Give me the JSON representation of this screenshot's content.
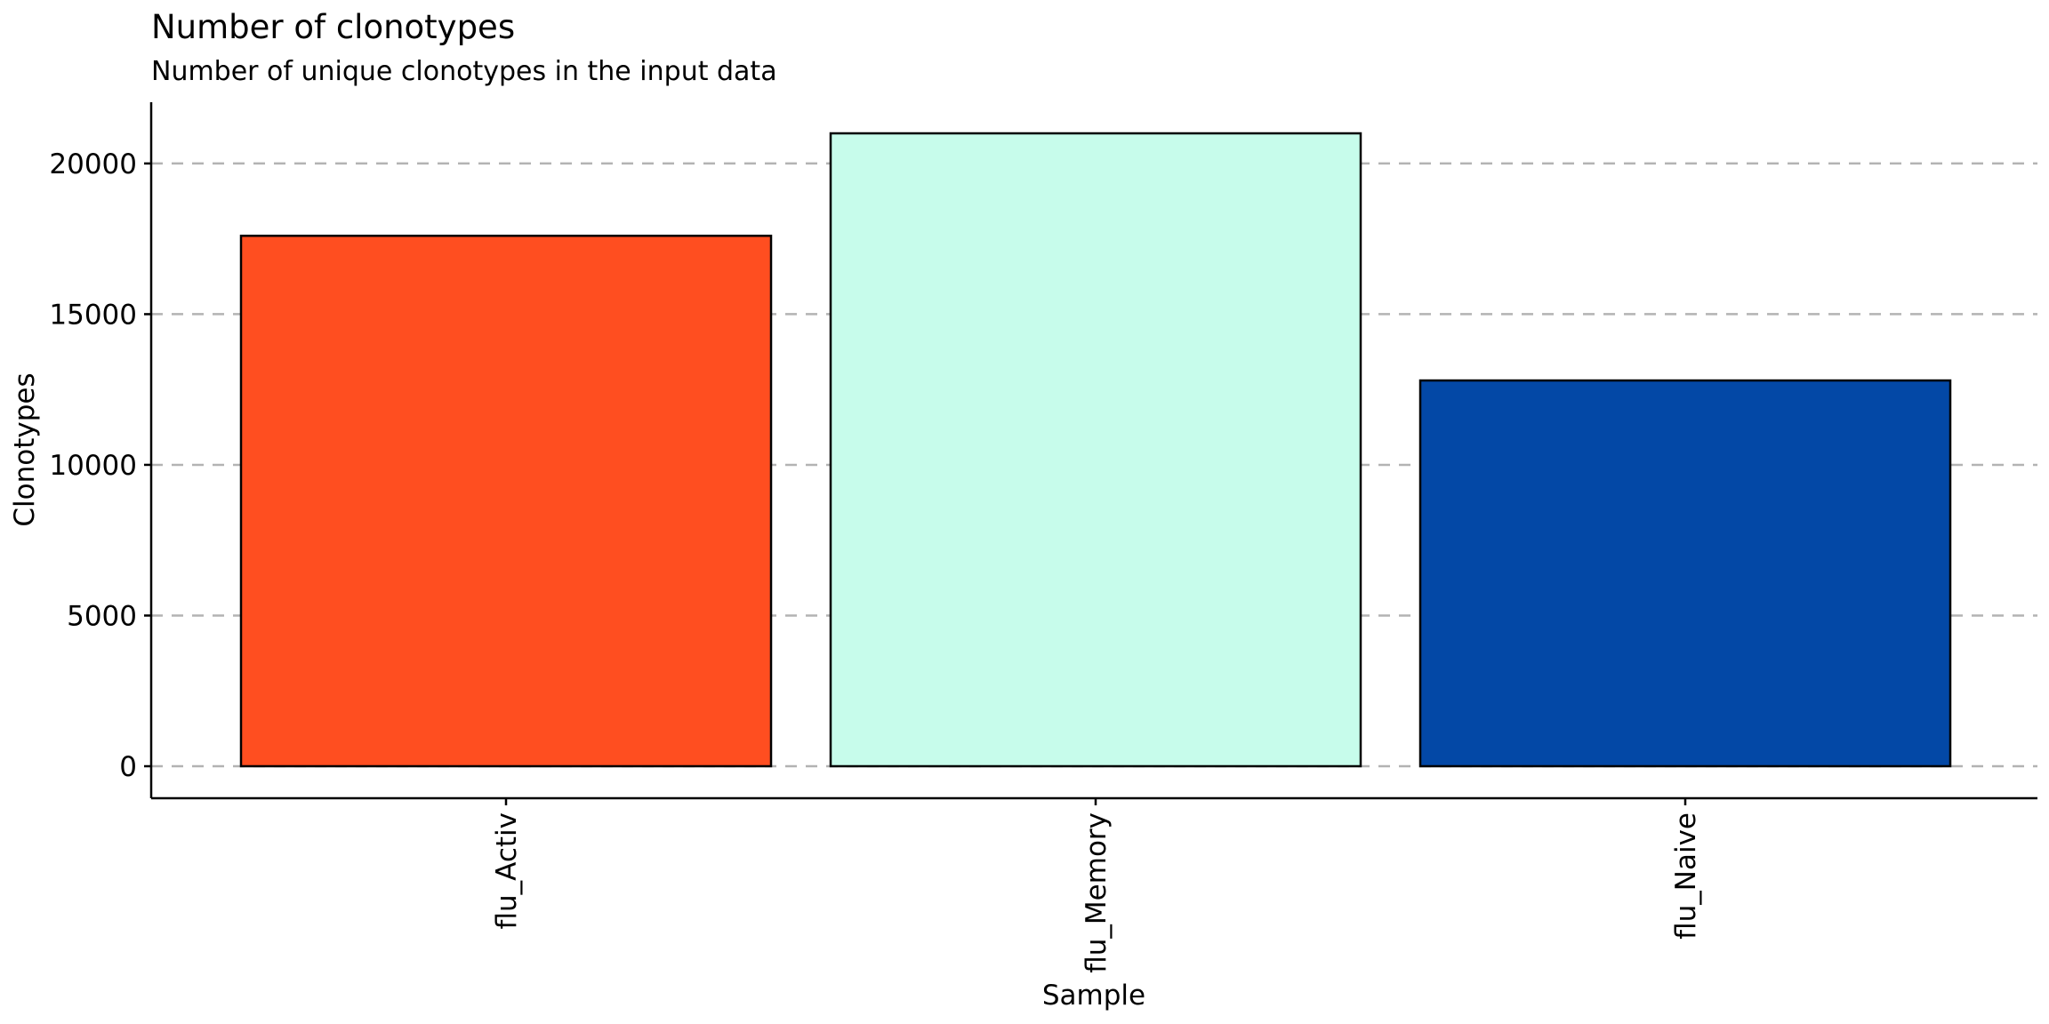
{
  "chart_data": {
    "type": "bar",
    "title": "Number of clonotypes",
    "subtitle": "Number of unique clonotypes in the input data",
    "xlabel": "Sample",
    "ylabel": "Clonotypes",
    "categories": [
      "flu_Activ",
      "flu_Memory",
      "flu_Naive"
    ],
    "values": [
      17600,
      21000,
      12800
    ],
    "colors": [
      "#FF4E20",
      "#C7FCEB",
      "#0348A6"
    ],
    "bar_outline_color": "#000000",
    "ylim": [
      0,
      21000
    ],
    "yticks": [
      0,
      5000,
      10000,
      15000,
      20000
    ],
    "ytick_labels": [
      "0",
      "5000",
      "10000",
      "15000",
      "20000"
    ],
    "grid": "horizontal dashed",
    "grid_color": "#B3B3B3",
    "legend": "none"
  }
}
